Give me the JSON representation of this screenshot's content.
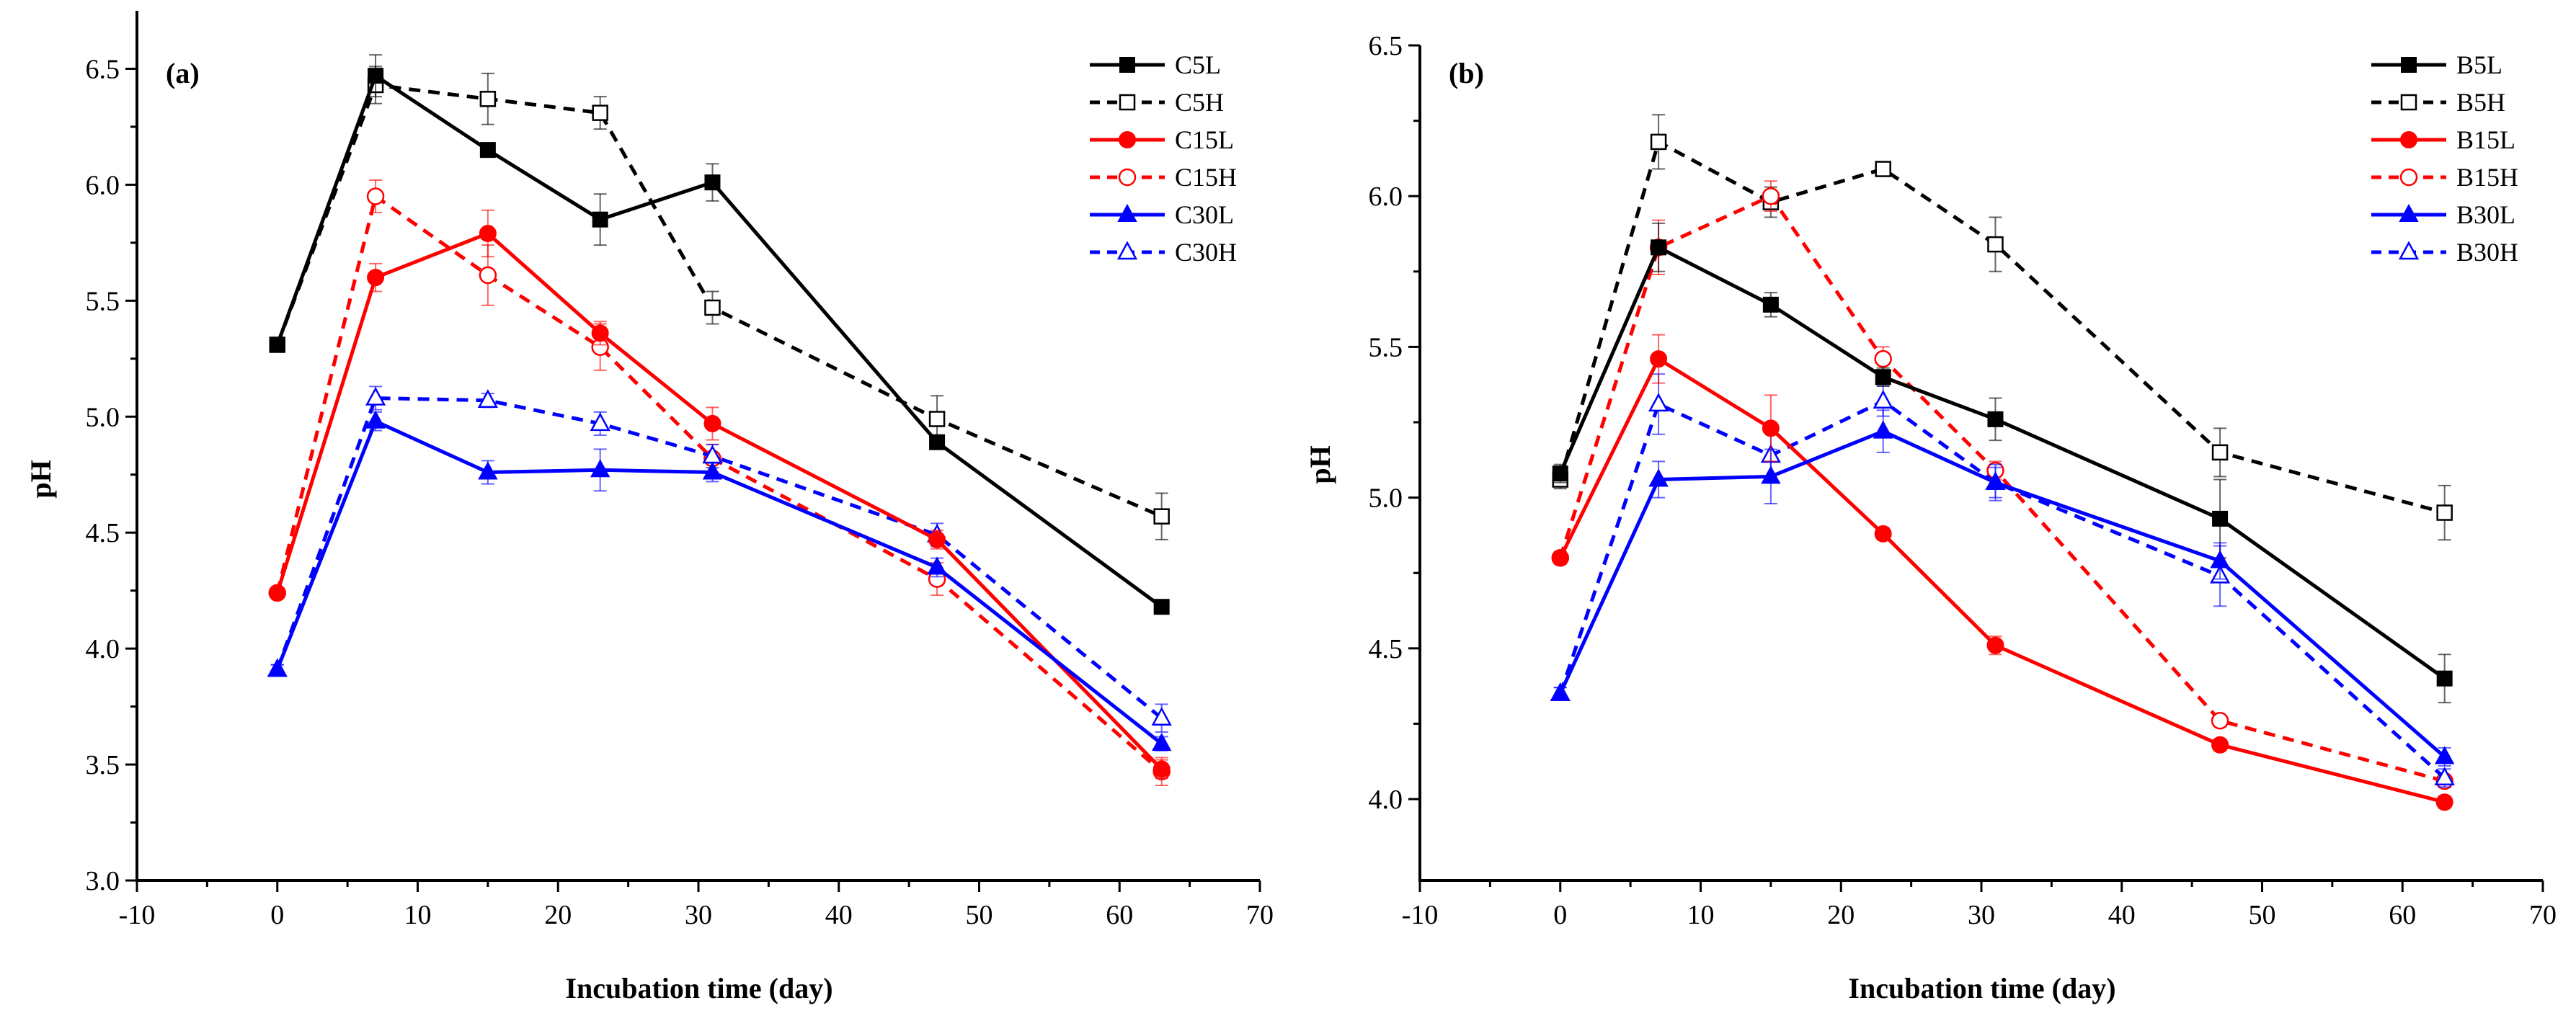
{
  "figure": {
    "colors": {
      "black": "#000000",
      "red": "#ff0000",
      "blue": "#0000ff"
    },
    "icons": {
      "filled_square": "square-marker",
      "open_square": "square-marker-open",
      "filled_circle": "circle-marker",
      "open_circle": "circle-marker-open",
      "filled_triangle": "triangle-marker",
      "open_triangle": "triangle-marker-open"
    }
  },
  "chart_data": [
    {
      "type": "line",
      "panel_label": "(a)",
      "xlabel": "Incubation time (day)",
      "ylabel": "pH",
      "xlim": [
        -10,
        70
      ],
      "ylim": [
        3.0,
        6.75
      ],
      "xticks": [
        -10,
        0,
        10,
        20,
        30,
        40,
        50,
        60,
        70
      ],
      "xtick_labels": [
        "-10",
        "0",
        "10",
        "20",
        "30",
        "40",
        "50",
        "60",
        "70"
      ],
      "yticks": [
        3.0,
        3.5,
        4.0,
        4.5,
        5.0,
        5.5,
        6.0,
        6.5
      ],
      "ytick_labels": [
        "3.0",
        "3.5",
        "4.0",
        "4.5",
        "5.0",
        "5.5",
        "6.0",
        "6.5"
      ],
      "legend_position": "top-right",
      "x": [
        0,
        7,
        15,
        23,
        31,
        47,
        63
      ],
      "series": [
        {
          "name": "C5L",
          "color": "#000000",
          "dashed": false,
          "marker": "square",
          "filled": true,
          "values": [
            5.31,
            6.47,
            6.15,
            5.85,
            6.01,
            4.89,
            4.18
          ],
          "errors": [
            0.02,
            0.09,
            0.03,
            0.11,
            0.08,
            0.03,
            0.02
          ]
        },
        {
          "name": "C5H",
          "color": "#000000",
          "dashed": true,
          "marker": "square",
          "filled": false,
          "values": [
            5.31,
            6.43,
            6.37,
            6.31,
            5.47,
            4.99,
            4.57
          ],
          "errors": [
            0.02,
            0.08,
            0.11,
            0.07,
            0.07,
            0.1,
            0.1
          ]
        },
        {
          "name": "C15L",
          "color": "#ff0000",
          "dashed": false,
          "marker": "circle",
          "filled": true,
          "values": [
            4.24,
            5.6,
            5.79,
            5.36,
            4.97,
            4.47,
            3.48
          ],
          "errors": [
            0.02,
            0.06,
            0.1,
            0.05,
            0.07,
            0.04,
            0.04
          ]
        },
        {
          "name": "C15H",
          "color": "#ff0000",
          "dashed": true,
          "marker": "circle",
          "filled": false,
          "values": [
            4.24,
            5.95,
            5.61,
            5.3,
            4.82,
            4.3,
            3.47
          ],
          "errors": [
            0.02,
            0.07,
            0.13,
            0.1,
            0.06,
            0.07,
            0.06
          ]
        },
        {
          "name": "C30L",
          "color": "#0000ff",
          "dashed": false,
          "marker": "triangle",
          "filled": true,
          "values": [
            3.91,
            4.98,
            4.76,
            4.77,
            4.76,
            4.35,
            3.59
          ],
          "errors": [
            0.02,
            0.04,
            0.05,
            0.09,
            0.04,
            0.04,
            0.03
          ]
        },
        {
          "name": "C30H",
          "color": "#0000ff",
          "dashed": true,
          "marker": "triangle",
          "filled": false,
          "values": [
            3.91,
            5.08,
            5.07,
            4.97,
            4.83,
            4.49,
            3.7
          ],
          "errors": [
            0.02,
            0.05,
            0.03,
            0.05,
            0.05,
            0.05,
            0.06
          ]
        }
      ]
    },
    {
      "type": "line",
      "panel_label": "(b)",
      "xlabel": "Incubation time (day)",
      "ylabel": "pH",
      "xlim": [
        -10,
        70
      ],
      "ylim": [
        3.73,
        6.5
      ],
      "xticks": [
        -10,
        0,
        10,
        20,
        30,
        40,
        50,
        60,
        70
      ],
      "xtick_labels": [
        "-10",
        "0",
        "10",
        "20",
        "30",
        "40",
        "50",
        "60",
        "70"
      ],
      "yticks": [
        4.0,
        4.5,
        5.0,
        5.5,
        6.0,
        6.5
      ],
      "ytick_labels": [
        "4.0",
        "4.5",
        "5.0",
        "5.5",
        "6.0",
        "6.5"
      ],
      "legend_position": "top-right",
      "x": [
        0,
        7,
        15,
        23,
        31,
        47,
        63
      ],
      "series": [
        {
          "name": "B5L",
          "color": "#000000",
          "dashed": false,
          "marker": "square",
          "filled": true,
          "values": [
            5.08,
            5.83,
            5.64,
            5.4,
            5.26,
            4.93,
            4.4
          ],
          "errors": [
            0.03,
            0.08,
            0.04,
            0.03,
            0.07,
            0.13,
            0.08
          ]
        },
        {
          "name": "B5H",
          "color": "#000000",
          "dashed": true,
          "marker": "square",
          "filled": false,
          "values": [
            5.06,
            6.18,
            5.98,
            6.09,
            5.84,
            5.15,
            4.95
          ],
          "errors": [
            0.03,
            0.09,
            0.05,
            0.02,
            0.09,
            0.08,
            0.09
          ]
        },
        {
          "name": "B15L",
          "color": "#ff0000",
          "dashed": false,
          "marker": "circle",
          "filled": true,
          "values": [
            4.8,
            5.46,
            5.23,
            4.88,
            4.51,
            4.18,
            3.99
          ],
          "errors": [
            0.02,
            0.08,
            0.11,
            0.02,
            0.03,
            0.02,
            0.02
          ]
        },
        {
          "name": "B15H",
          "color": "#ff0000",
          "dashed": true,
          "marker": "circle",
          "filled": false,
          "values": [
            4.8,
            5.83,
            6.0,
            5.46,
            5.09,
            4.26,
            4.06
          ],
          "errors": [
            0.02,
            0.09,
            0.05,
            0.04,
            0.03,
            0.02,
            0.02
          ]
        },
        {
          "name": "B30L",
          "color": "#0000ff",
          "dashed": false,
          "marker": "triangle",
          "filled": true,
          "values": [
            4.35,
            5.06,
            5.07,
            5.22,
            5.05,
            4.79,
            4.14
          ],
          "errors": [
            0.02,
            0.06,
            0.09,
            0.07,
            0.06,
            0.06,
            0.03
          ]
        },
        {
          "name": "B30H",
          "color": "#0000ff",
          "dashed": true,
          "marker": "triangle",
          "filled": false,
          "values": [
            4.35,
            5.31,
            5.14,
            5.32,
            5.05,
            4.74,
            4.07
          ],
          "errors": [
            0.02,
            0.1,
            0.08,
            0.05,
            0.05,
            0.1,
            0.03
          ]
        }
      ]
    }
  ]
}
